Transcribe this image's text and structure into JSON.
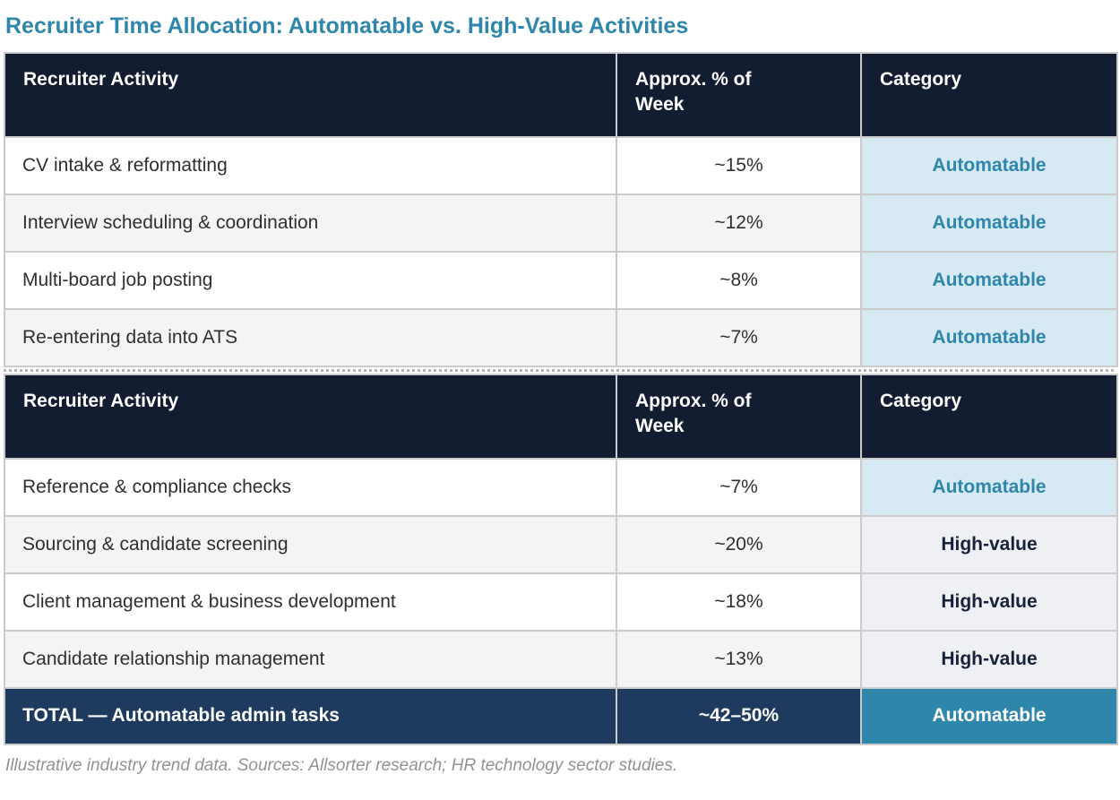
{
  "title": "Recruiter Time Allocation: Automatable vs. High-Value Activities",
  "table": {
    "headers": {
      "activity": "Recruiter Activity",
      "percent": "Approx. % of Week",
      "category": "Category"
    },
    "section1": [
      {
        "activity": "CV intake & reformatting",
        "percent": "~15%",
        "category": "Automatable"
      },
      {
        "activity": "Interview scheduling & coordination",
        "percent": "~12%",
        "category": "Automatable"
      },
      {
        "activity": "Multi-board job posting",
        "percent": "~8%",
        "category": "Automatable"
      },
      {
        "activity": "Re-entering data into ATS",
        "percent": "~7%",
        "category": "Automatable"
      }
    ],
    "section2": [
      {
        "activity": "Reference & compliance checks",
        "percent": "~7%",
        "category": "Automatable"
      },
      {
        "activity": "Sourcing & candidate screening",
        "percent": "~20%",
        "category": "High-value"
      },
      {
        "activity": "Client management & business development",
        "percent": "~18%",
        "category": "High-value"
      },
      {
        "activity": "Candidate relationship management",
        "percent": "~13%",
        "category": "High-value"
      }
    ],
    "total": {
      "activity": "TOTAL — Automatable admin tasks",
      "percent": "~42–50%",
      "category": "Automatable"
    }
  },
  "footnote": "Illustrative industry trend data. Sources: Allsorter research; HR technology sector studies.",
  "colors": {
    "accent_teal": "#2e86ab",
    "header_navy": "#121d32",
    "total_navy": "#1f3a5f",
    "automatable_bg": "#d7eaf4",
    "highvalue_bg": "#eef0f3",
    "row_alt_bg": "#f3f4f6",
    "border_gray": "#cbcbcb",
    "footnote_gray": "#8f9296"
  },
  "chart_data": {
    "type": "table",
    "title": "Recruiter Time Allocation: Automatable vs. High-Value Activities",
    "columns": [
      "Recruiter Activity",
      "Approx. % of Week",
      "Category"
    ],
    "rows": [
      [
        "CV intake & reformatting",
        "~15%",
        "Automatable"
      ],
      [
        "Interview scheduling & coordination",
        "~12%",
        "Automatable"
      ],
      [
        "Multi-board job posting",
        "~8%",
        "Automatable"
      ],
      [
        "Re-entering data into ATS",
        "~7%",
        "Automatable"
      ],
      [
        "Reference & compliance checks",
        "~7%",
        "Automatable"
      ],
      [
        "Sourcing & candidate screening",
        "~20%",
        "High-value"
      ],
      [
        "Client management & business development",
        "~18%",
        "High-value"
      ],
      [
        "Candidate relationship management",
        "~13%",
        "High-value"
      ],
      [
        "TOTAL — Automatable admin tasks",
        "~42–50%",
        "Automatable"
      ]
    ],
    "footnote": "Illustrative industry trend data. Sources: Allsorter research; HR technology sector studies.",
    "layout": "repeated header before row index 4; alternating row shading; total row highlighted navy with teal category cell"
  }
}
